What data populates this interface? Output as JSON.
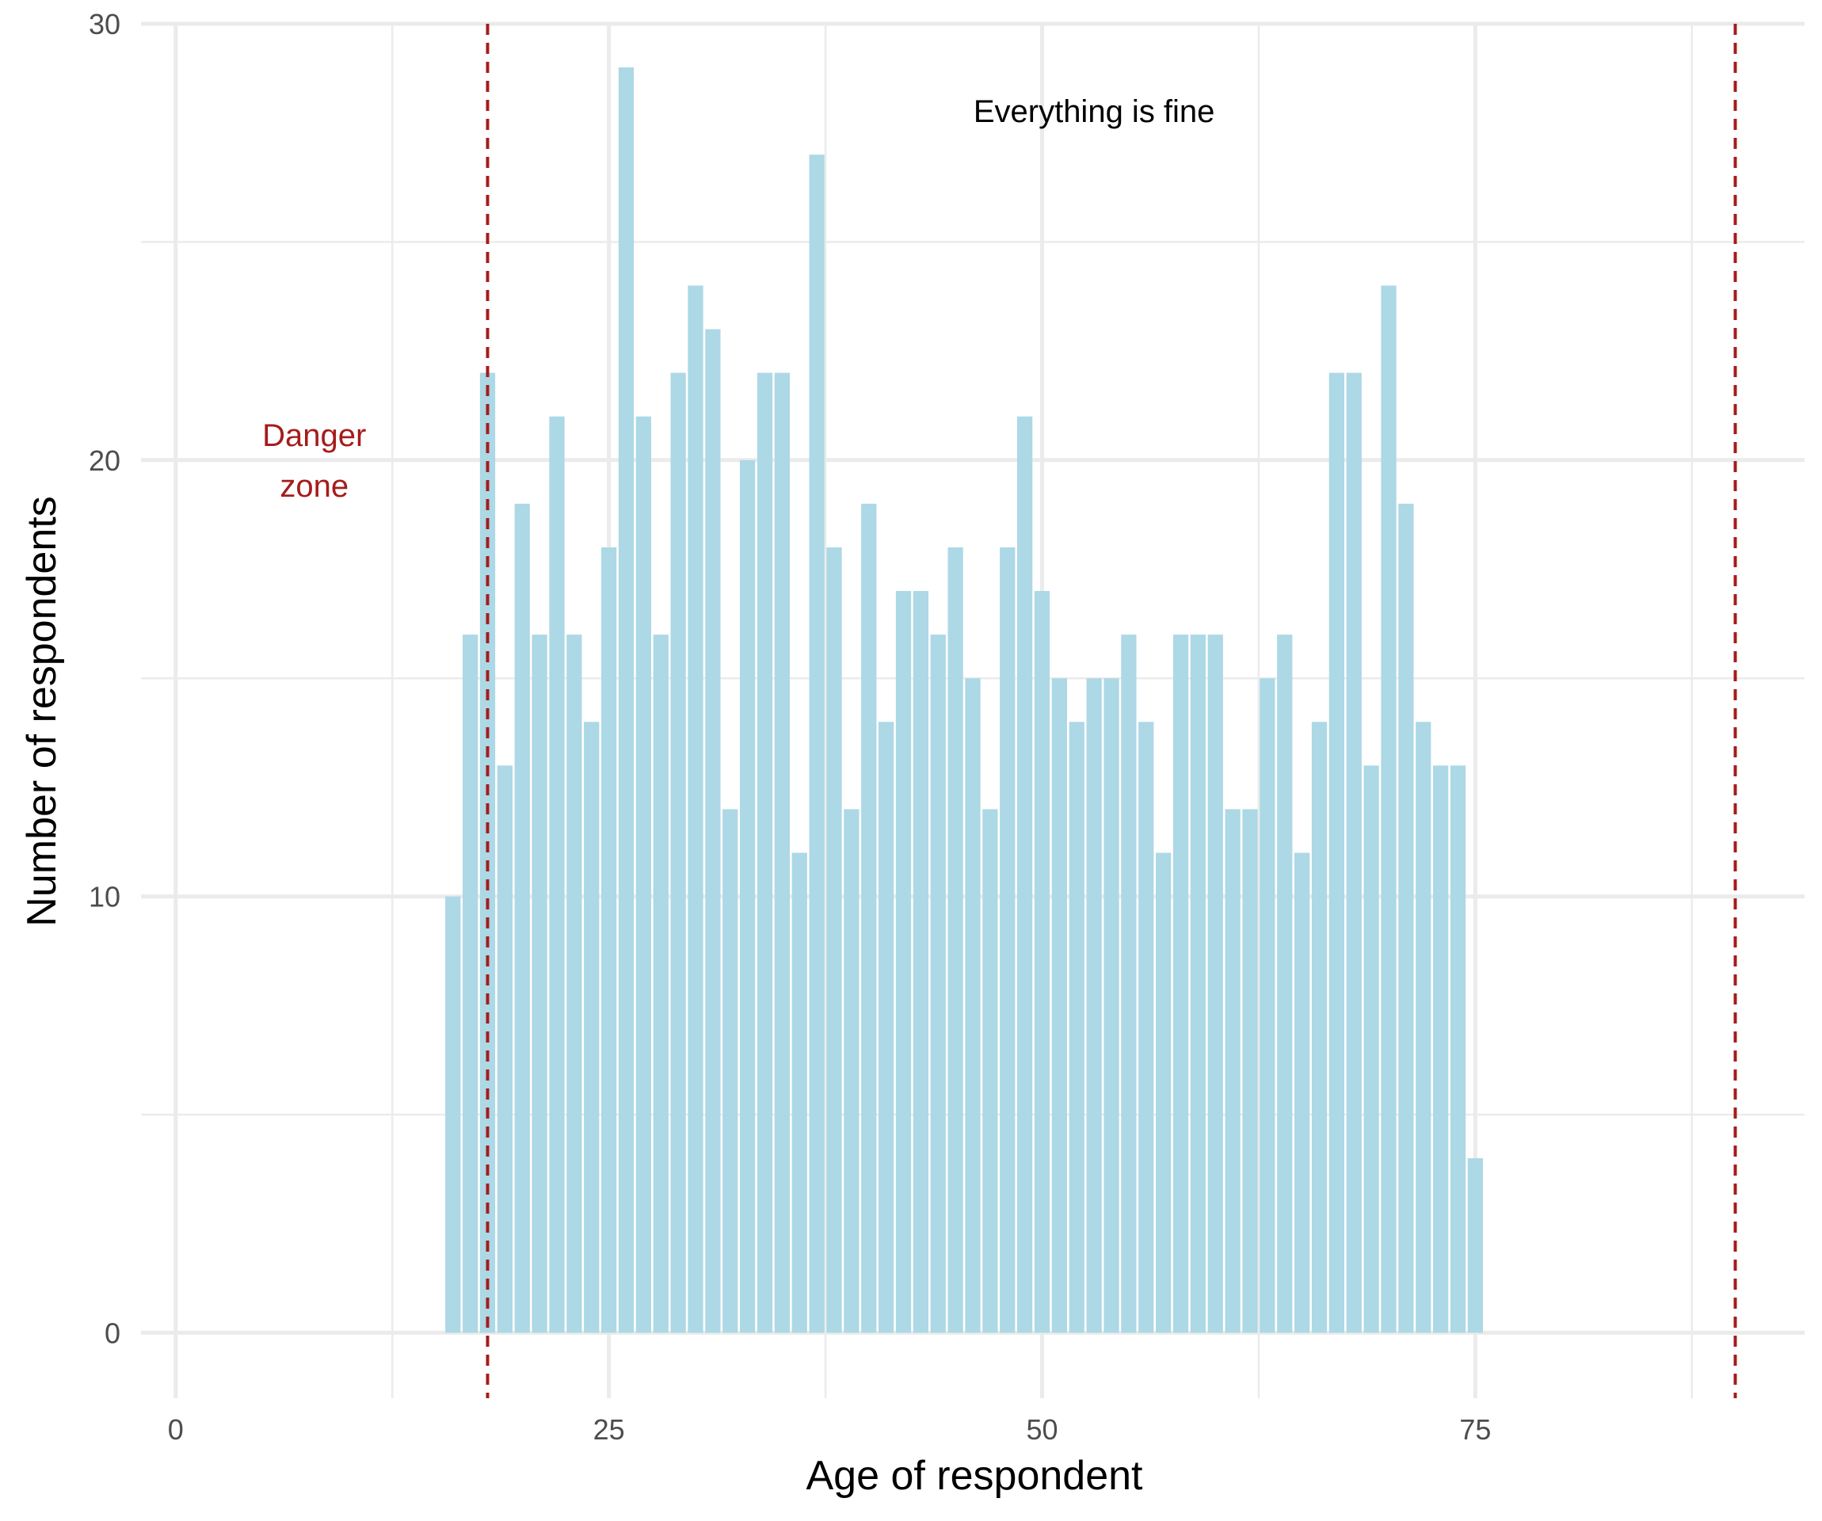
{
  "chart_data": {
    "type": "bar",
    "xlabel": "Age of respondent",
    "ylabel": "Number of respondents",
    "xlim": [
      -2,
      94
    ],
    "ylim": [
      -1.5,
      30
    ],
    "x_ticks": [
      0,
      25,
      50,
      75
    ],
    "x_tick_labels": [
      "0",
      "25",
      "50",
      "75"
    ],
    "y_ticks": [
      0,
      10,
      20,
      30
    ],
    "y_tick_labels": [
      "0",
      "10",
      "20",
      "30"
    ],
    "x_minor_ticks": [
      12.5,
      37.5,
      62.5,
      87.5
    ],
    "y_minor_ticks": [
      5,
      15,
      25
    ],
    "grid": true,
    "bar_color": "#add8e6",
    "x": [
      16,
      17,
      18,
      19,
      20,
      21,
      22,
      23,
      24,
      25,
      26,
      27,
      28,
      29,
      30,
      31,
      32,
      33,
      34,
      35,
      36,
      37,
      38,
      39,
      40,
      41,
      42,
      43,
      44,
      45,
      46,
      47,
      48,
      49,
      50,
      51,
      52,
      53,
      54,
      55,
      56,
      57,
      58,
      59,
      60,
      61,
      62,
      63,
      64,
      65,
      66,
      67,
      68,
      69,
      70,
      71,
      72,
      73,
      74,
      75
    ],
    "values": [
      10,
      16,
      22,
      13,
      19,
      16,
      21,
      16,
      14,
      18,
      29,
      21,
      16,
      22,
      24,
      23,
      12,
      20,
      22,
      22,
      11,
      27,
      18,
      12,
      19,
      14,
      17,
      17,
      16,
      18,
      15,
      12,
      18,
      21,
      17,
      15,
      14,
      15,
      15,
      16,
      14,
      11,
      16,
      16,
      16,
      12,
      12,
      15,
      16,
      11,
      14,
      22,
      22,
      13,
      24,
      19,
      14,
      13,
      13,
      4
    ],
    "reference_lines": [
      {
        "x": 18,
        "color": "#a51c1c",
        "style": "dashed"
      },
      {
        "x": 90,
        "color": "#a51c1c",
        "style": "dashed"
      }
    ],
    "annotations": [
      {
        "lines": [
          "Danger",
          "zone"
        ],
        "x": 8,
        "y": 20,
        "color": "#a51c1c"
      },
      {
        "lines": [
          "Everything is fine"
        ],
        "x": 53,
        "y": 28,
        "color": "#000000"
      }
    ]
  }
}
